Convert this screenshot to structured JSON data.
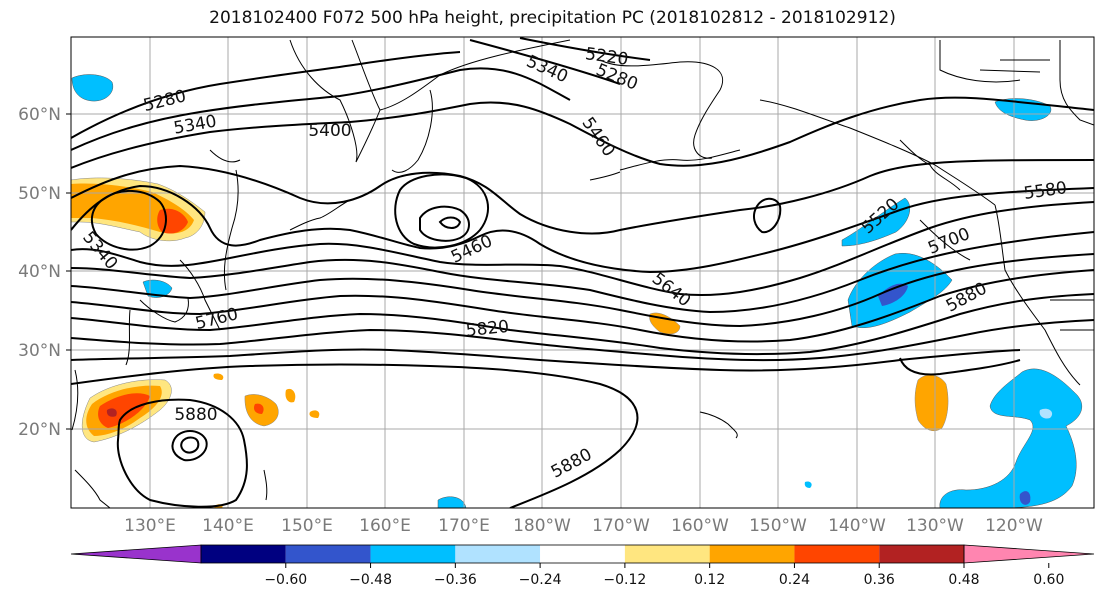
{
  "title": "2018102400 F072 500 hPa height, precipitation PC (2018102812 - 2018102912)",
  "lat_labels": [
    "60°N",
    "50°N",
    "40°N",
    "30°N",
    "20°N"
  ],
  "lon_labels": [
    "130°E",
    "140°E",
    "150°E",
    "160°E",
    "170°E",
    "180°W",
    "170°W",
    "160°W",
    "150°W",
    "140°W",
    "130°W",
    "120°W"
  ],
  "contour_labels": [
    "5220",
    "5280",
    "5340",
    "5280",
    "5340",
    "5400",
    "5460",
    "5460",
    "5340",
    "5640",
    "5520",
    "5580",
    "5700",
    "5760",
    "5820",
    "5880",
    "5880",
    "5880"
  ],
  "colorbar": {
    "colors": [
      "#9933cc",
      "#000080",
      "#3355cc",
      "#00bfff",
      "#b0e2ff",
      "#ffffff",
      "#ffe680",
      "#ffa500",
      "#ff4500",
      "#b22222",
      "#ff85b0"
    ],
    "ticks": [
      "−0.60",
      "−0.48",
      "−0.36",
      "−0.24",
      "−0.12",
      "0.12",
      "0.24",
      "0.36",
      "0.48",
      "0.60"
    ]
  }
}
